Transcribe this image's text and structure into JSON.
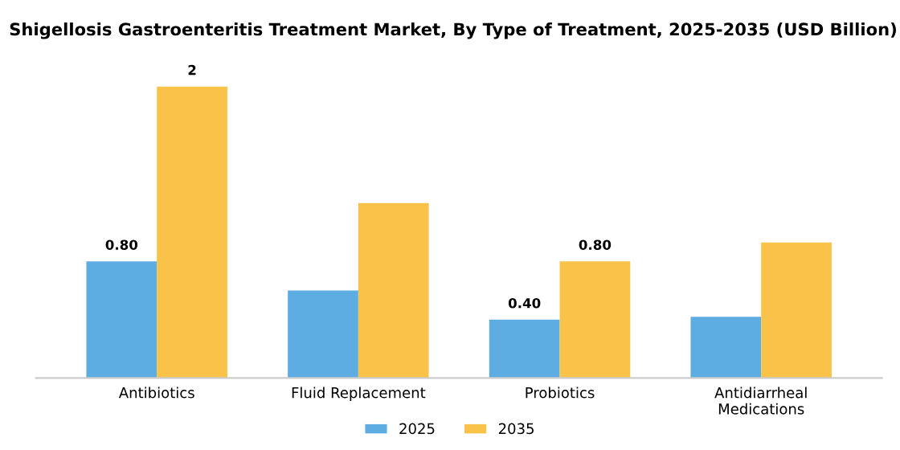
{
  "chart_data": {
    "type": "bar",
    "title": "Shigellosis Gastroenteritis Treatment Market, By Type of Treatment, 2025-2035 (USD Billion)",
    "categories": [
      "Antibiotics",
      "Fluid Replacement",
      "Probiotics",
      "Antidiarrheal\nMedications"
    ],
    "series": [
      {
        "name": "2025",
        "color": "#5dade2",
        "values": [
          0.8,
          0.6,
          0.4,
          0.42
        ],
        "value_labels": [
          "0.80",
          null,
          "0.40",
          null
        ]
      },
      {
        "name": "2035",
        "color": "#f9c34a",
        "values": [
          2,
          1.2,
          0.8,
          0.93
        ],
        "value_labels": [
          "2",
          null,
          "0.80",
          null
        ]
      }
    ],
    "legend": "bottom",
    "grid": false,
    "tick_labels": "x"
  }
}
